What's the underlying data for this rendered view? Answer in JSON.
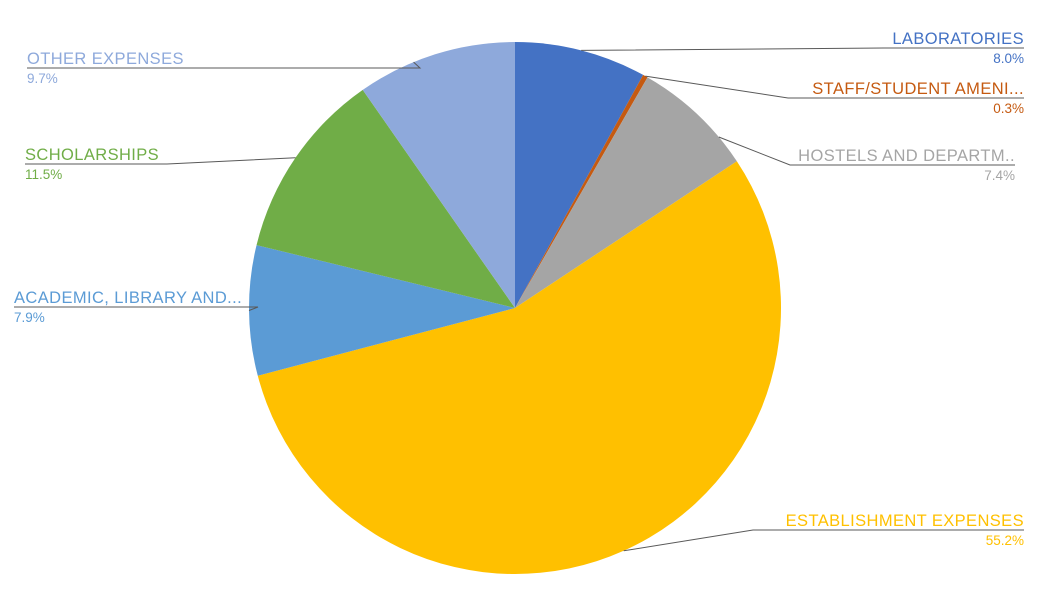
{
  "page": {
    "background": "#FFFFFF",
    "leader_line_color": "#595959"
  },
  "chart_data": {
    "type": "pie",
    "title": "",
    "legend_position": "none",
    "label_style": "outside-callout-with-leader-lines",
    "start_angle_deg": 0,
    "direction": "clockwise",
    "total": 100.0,
    "slices": [
      {
        "label": "LABORATORIES",
        "value": 8.0,
        "pct_label": "8.0%",
        "color": "#4472C4"
      },
      {
        "label": "STAFF/STUDENT AMENI...",
        "value": 0.3,
        "pct_label": "0.3%",
        "color": "#C55A11"
      },
      {
        "label": "HOSTELS AND DEPARTM..",
        "value": 7.4,
        "pct_label": "7.4%",
        "color": "#A5A5A5"
      },
      {
        "label": "ESTABLISHMENT EXPENSES",
        "value": 55.2,
        "pct_label": "55.2%",
        "color": "#FFC000"
      },
      {
        "label": "ACADEMIC, LIBRARY AND...",
        "value": 7.9,
        "pct_label": "7.9%",
        "color": "#5B9BD5"
      },
      {
        "label": "SCHOLARSHIPS",
        "value": 11.5,
        "pct_label": "11.5%",
        "color": "#70AD47"
      },
      {
        "label": "OTHER EXPENSES",
        "value": 9.7,
        "pct_label": "9.7%",
        "color": "#8EA9DB"
      }
    ]
  }
}
